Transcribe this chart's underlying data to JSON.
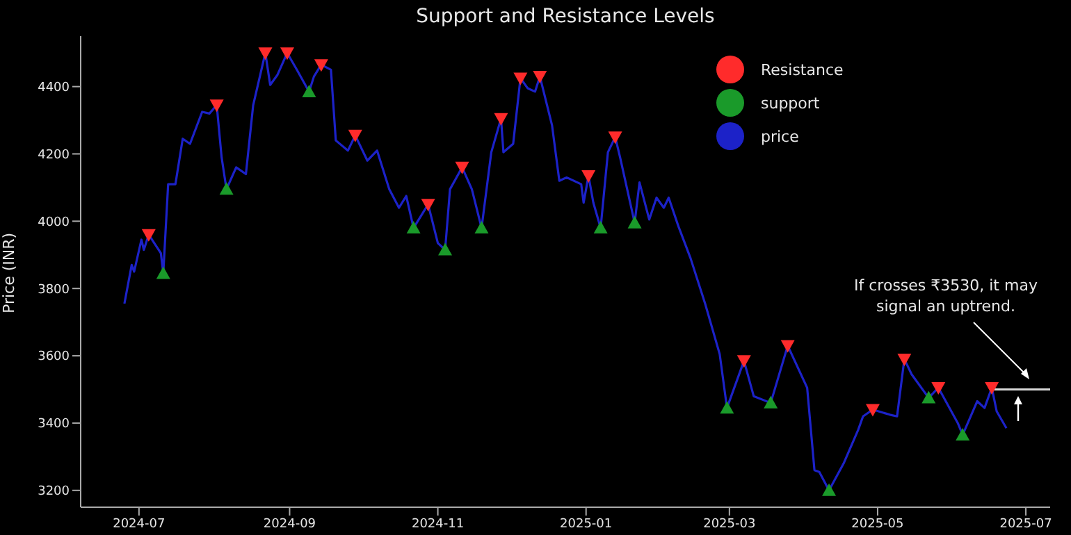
{
  "chart_data": {
    "type": "line",
    "title": "Support and Resistance Levels",
    "ylabel": "Price (INR)",
    "xlim": [
      "2024-06-07",
      "2025-07-11"
    ],
    "xticks": [
      "2024-07",
      "2024-09",
      "2024-11",
      "2025-01",
      "2025-03",
      "2025-05",
      "2025-07"
    ],
    "ylim": [
      3150,
      4550
    ],
    "yticks": [
      3200,
      3400,
      3600,
      3800,
      4000,
      4200,
      4400
    ],
    "grid": false,
    "legend": "top right",
    "annotations": [
      "If crosses ₹3530, it may signal an uptrend."
    ],
    "series": [
      {
        "name": "Resistance",
        "type": "scatter",
        "marker": "triangle-down",
        "color": "#ff2b2b",
        "x": [
          "2024-07-05",
          "2024-08-02",
          "2024-08-22",
          "2024-08-31",
          "2024-09-14",
          "2024-09-28",
          "2024-10-28",
          "2024-11-11",
          "2024-11-27",
          "2024-12-05",
          "2024-12-13",
          "2025-01-02",
          "2025-01-13",
          "2025-03-07",
          "2025-03-25",
          "2025-04-29",
          "2025-05-12",
          "2025-05-26",
          "2025-06-17"
        ],
        "values": [
          3960,
          4345,
          4500,
          4500,
          4465,
          4255,
          4050,
          4160,
          4305,
          4425,
          4430,
          4135,
          4250,
          3585,
          3630,
          3440,
          3590,
          3505,
          3505
        ]
      },
      {
        "name": "support",
        "type": "scatter",
        "marker": "triangle",
        "color": "#1a9a2a",
        "x": [
          "2024-07-11",
          "2024-08-06",
          "2024-09-09",
          "2024-10-22",
          "2024-11-04",
          "2024-11-19",
          "2025-01-07",
          "2025-01-21",
          "2025-02-28",
          "2025-03-18",
          "2025-04-11",
          "2025-05-22",
          "2025-06-05"
        ],
        "values": [
          3845,
          4095,
          4385,
          3980,
          3915,
          3980,
          3980,
          3995,
          3445,
          3460,
          3200,
          3475,
          3365
        ]
      },
      {
        "name": "price",
        "marker": "none",
        "color": "#1c22c8",
        "x": [
          "2024-06-25",
          "2024-06-28",
          "2024-06-29",
          "2024-07-02",
          "2024-07-03",
          "2024-07-05",
          "2024-07-10",
          "2024-07-11",
          "2024-07-13",
          "2024-07-16",
          "2024-07-19",
          "2024-07-22",
          "2024-07-27",
          "2024-07-30",
          "2024-08-02",
          "2024-08-04",
          "2024-08-06",
          "2024-08-10",
          "2024-08-14",
          "2024-08-17",
          "2024-08-22",
          "2024-08-24",
          "2024-08-27",
          "2024-08-31",
          "2024-09-04",
          "2024-09-09",
          "2024-09-11",
          "2024-09-14",
          "2024-09-18",
          "2024-09-20",
          "2024-09-25",
          "2024-09-28",
          "2024-10-03",
          "2024-10-07",
          "2024-10-12",
          "2024-10-16",
          "2024-10-19",
          "2024-10-22",
          "2024-10-28",
          "2024-11-01",
          "2024-11-04",
          "2024-11-06",
          "2024-11-11",
          "2024-11-15",
          "2024-11-19",
          "2024-11-23",
          "2024-11-27",
          "2024-11-28",
          "2024-12-02",
          "2024-12-05",
          "2024-12-08",
          "2024-12-11",
          "2024-12-13",
          "2024-12-18",
          "2024-12-21",
          "2024-12-24",
          "2024-12-30",
          "2024-12-31",
          "2025-01-02",
          "2025-01-04",
          "2025-01-07",
          "2025-01-10",
          "2025-01-13",
          "2025-01-15",
          "2025-01-21",
          "2025-01-23",
          "2025-01-27",
          "2025-01-30",
          "2025-02-02",
          "2025-02-04",
          "2025-02-08",
          "2025-02-13",
          "2025-02-19",
          "2025-02-25",
          "2025-02-28",
          "2025-03-07",
          "2025-03-11",
          "2025-03-18",
          "2025-03-25",
          "2025-04-02",
          "2025-04-05",
          "2025-04-07",
          "2025-04-11",
          "2025-04-17",
          "2025-04-23",
          "2025-04-25",
          "2025-04-29",
          "2025-05-06",
          "2025-05-09",
          "2025-05-12",
          "2025-05-15",
          "2025-05-22",
          "2025-05-26",
          "2025-06-03",
          "2025-06-05",
          "2025-06-11",
          "2025-06-14",
          "2025-06-17",
          "2025-06-19",
          "2025-06-23"
        ],
        "values": [
          3755,
          3870,
          3850,
          3945,
          3915,
          3960,
          3905,
          3845,
          4110,
          4110,
          4245,
          4230,
          4325,
          4320,
          4345,
          4190,
          4095,
          4160,
          4140,
          4345,
          4500,
          4405,
          4435,
          4500,
          4450,
          4385,
          4430,
          4465,
          4450,
          4240,
          4210,
          4255,
          4180,
          4210,
          4095,
          4040,
          4075,
          3980,
          4050,
          3935,
          3915,
          4095,
          4160,
          4095,
          3980,
          4205,
          4305,
          4205,
          4230,
          4425,
          4395,
          4385,
          4430,
          4285,
          4120,
          4130,
          4110,
          4055,
          4135,
          4055,
          3980,
          4205,
          4250,
          4190,
          3995,
          4115,
          4005,
          4070,
          4040,
          4070,
          3985,
          3890,
          3755,
          3605,
          3445,
          3585,
          3480,
          3460,
          3630,
          3505,
          3260,
          3255,
          3200,
          3280,
          3380,
          3420,
          3440,
          3425,
          3420,
          3590,
          3545,
          3475,
          3505,
          3400,
          3365,
          3465,
          3445,
          3505,
          3435,
          3385
        ]
      },
      {
        "marker": "none",
        "color": "#d8d8d8",
        "x": [
          "2025-06-17",
          "2025-07-11"
        ],
        "values": [
          3500,
          3500
        ]
      }
    ]
  }
}
